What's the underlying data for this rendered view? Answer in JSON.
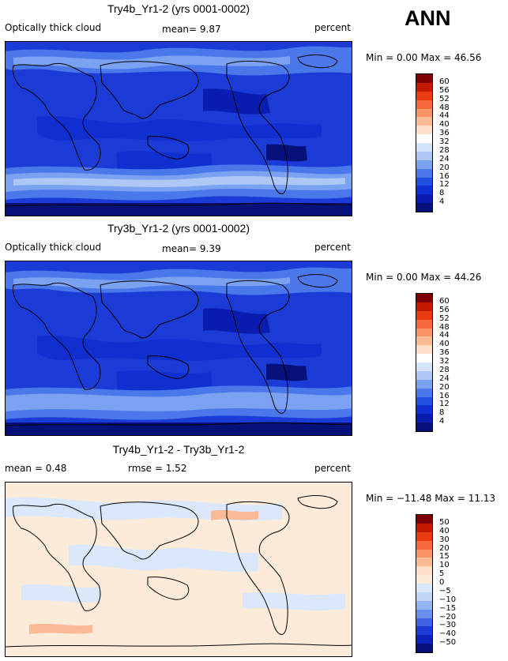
{
  "season_label": "ANN",
  "panels": [
    {
      "title": "Try4b_Yr1-2 (yrs 0001-0002)",
      "left_text": "Optically thick cloud",
      "mid_text": "mean=  9.87",
      "units": "percent",
      "minmax": "Min =   0.00 Max =  46.56",
      "colorbar_labels": [
        "60",
        "56",
        "52",
        "48",
        "44",
        "40",
        "36",
        "32",
        "28",
        "24",
        "20",
        "16",
        "12",
        "8",
        "4"
      ]
    },
    {
      "title": "Try3b_Yr1-2 (yrs 0001-0002)",
      "left_text": "Optically thick cloud",
      "mid_text": "mean=  9.39",
      "units": "percent",
      "minmax": "Min =   0.00 Max =  44.26",
      "colorbar_labels": [
        "60",
        "56",
        "52",
        "48",
        "44",
        "40",
        "36",
        "32",
        "28",
        "24",
        "20",
        "16",
        "12",
        "8",
        "4"
      ]
    },
    {
      "title": "Try4b_Yr1-2 - Try3b_Yr1-2",
      "left_text": "mean =   0.48",
      "mid_text": "rmse =   1.52",
      "units": "percent",
      "minmax": "Min = −11.48 Max =  11.13",
      "colorbar_labels": [
        "50",
        "40",
        "30",
        "20",
        "15",
        "10",
        "5",
        "0",
        "−5",
        "−10",
        "−15",
        "−20",
        "−30",
        "−40",
        "−50"
      ]
    }
  ],
  "colors": {
    "abs_scale": [
      "#7f0000",
      "#c41a00",
      "#e83c10",
      "#f46a3a",
      "#f89466",
      "#fbba96",
      "#fde0c8",
      "#ffffff",
      "#d6e4fa",
      "#aec8f6",
      "#7aa2f0",
      "#4a78ea",
      "#2050e0",
      "#0f2fd0",
      "#0a1cb0",
      "#06107a"
    ],
    "diff_scale": [
      "#7f0000",
      "#c41a00",
      "#e83c10",
      "#f46a3a",
      "#f89466",
      "#fbba96",
      "#fde0c8",
      "#fdebd9",
      "#dbe8fb",
      "#c1d5f7",
      "#94b4f2",
      "#6a8eec",
      "#3f63e4",
      "#1a3bd6",
      "#0c22b8",
      "#06107a"
    ]
  },
  "chart_data": [
    {
      "type": "heatmap",
      "title": "Try4b_Yr1-2 (yrs 0001-0002)",
      "variable": "Optically thick cloud",
      "units": "percent",
      "mean": 9.87,
      "min": 0.0,
      "max": 46.56,
      "levels": [
        4,
        8,
        12,
        16,
        20,
        24,
        28,
        32,
        36,
        40,
        44,
        48,
        52,
        56,
        60
      ]
    },
    {
      "type": "heatmap",
      "title": "Try3b_Yr1-2 (yrs 0001-0002)",
      "variable": "Optically thick cloud",
      "units": "percent",
      "mean": 9.39,
      "min": 0.0,
      "max": 44.26,
      "levels": [
        4,
        8,
        12,
        16,
        20,
        24,
        28,
        32,
        36,
        40,
        44,
        48,
        52,
        56,
        60
      ]
    },
    {
      "type": "heatmap",
      "title": "Try4b_Yr1-2 - Try3b_Yr1-2",
      "units": "percent",
      "mean": 0.48,
      "rmse": 1.52,
      "min": -11.48,
      "max": 11.13,
      "levels": [
        -50,
        -40,
        -30,
        -20,
        -15,
        -10,
        -5,
        0,
        5,
        10,
        15,
        20,
        30,
        40,
        50
      ]
    }
  ]
}
